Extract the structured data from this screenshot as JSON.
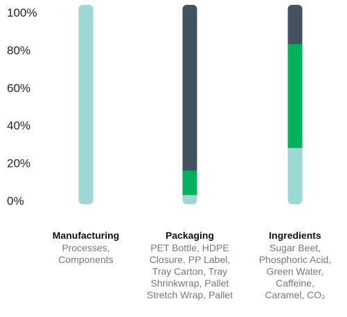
{
  "chart_data": {
    "type": "bar",
    "stacked": true,
    "ylim": [
      0,
      100
    ],
    "y_ticks": [
      "100%",
      "80%",
      "60%",
      "40%",
      "20%",
      "0%"
    ],
    "y_tick_values": [
      100,
      80,
      60,
      40,
      20,
      0
    ],
    "categories": [
      {
        "name": "Manufacturing",
        "detail_lines": [
          "Processes,",
          "Components"
        ],
        "segments": [
          {
            "value": 100,
            "color": "#9dd8d3"
          }
        ]
      },
      {
        "name": "Packaging",
        "detail_lines": [
          "PET Bottle, HDPE",
          "Closure, PP Label,",
          "Tray Carton, Tray",
          "Shrinkwrap, Pallet",
          "Stretch Wrap, Pallet"
        ],
        "segments": [
          {
            "value": 3,
            "color": "#9dd8d3"
          },
          {
            "value": 13,
            "color": "#00b05c"
          },
          {
            "value": 84,
            "color": "#43525e"
          }
        ]
      },
      {
        "name": "Ingredients",
        "detail_lines": [
          "Sugar Beet,",
          "Phosphoric Acid,",
          "Green Water,",
          "Caffeine,",
          "Caramel, CO₂"
        ],
        "segments": [
          {
            "value": 28,
            "color": "#9dd8d3"
          },
          {
            "value": 55,
            "color": "#00b05c"
          },
          {
            "value": 17,
            "color": "#43525e"
          }
        ]
      }
    ]
  }
}
